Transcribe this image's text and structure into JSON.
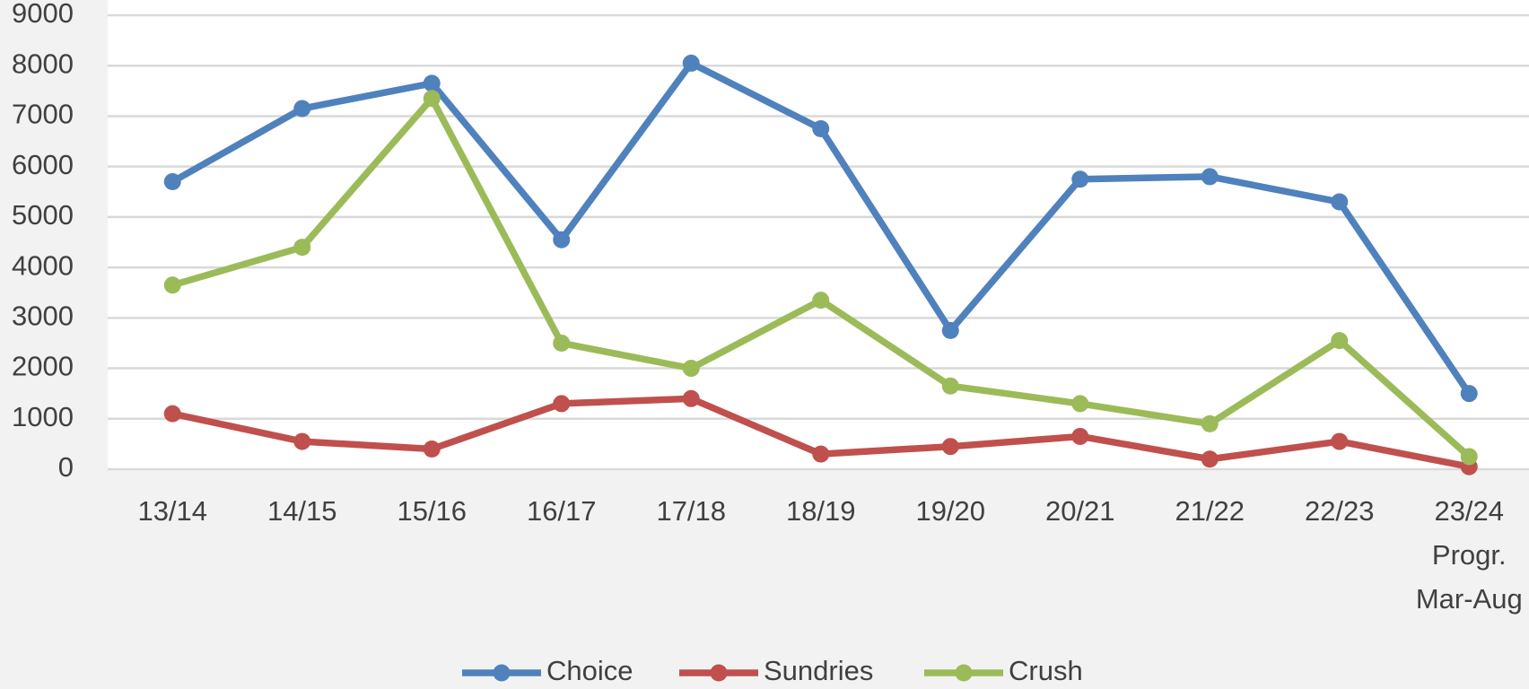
{
  "chart_data": {
    "type": "line",
    "categories": [
      "13/14",
      "14/15",
      "15/16",
      "16/17",
      "17/18",
      "18/19",
      "19/20",
      "20/21",
      "21/22",
      "22/23",
      "23/24 Progr. Mar-Aug"
    ],
    "series": [
      {
        "name": "Choice",
        "color": "#4f81bd",
        "values": [
          5700,
          7150,
          7650,
          4550,
          8050,
          6750,
          2750,
          5750,
          5800,
          5300,
          1500
        ]
      },
      {
        "name": "Sundries",
        "color": "#c0504d",
        "values": [
          1100,
          550,
          400,
          1300,
          1400,
          300,
          450,
          650,
          200,
          550,
          50
        ]
      },
      {
        "name": "Crush",
        "color": "#9bbb59",
        "values": [
          3650,
          4400,
          7350,
          2500,
          2000,
          3350,
          1650,
          1300,
          900,
          2550,
          250
        ]
      }
    ],
    "ylim": [
      0,
      9000
    ],
    "yticks": [
      0,
      1000,
      2000,
      3000,
      4000,
      5000,
      6000,
      7000,
      8000,
      9000
    ],
    "grid": true,
    "legend": "bottom"
  }
}
